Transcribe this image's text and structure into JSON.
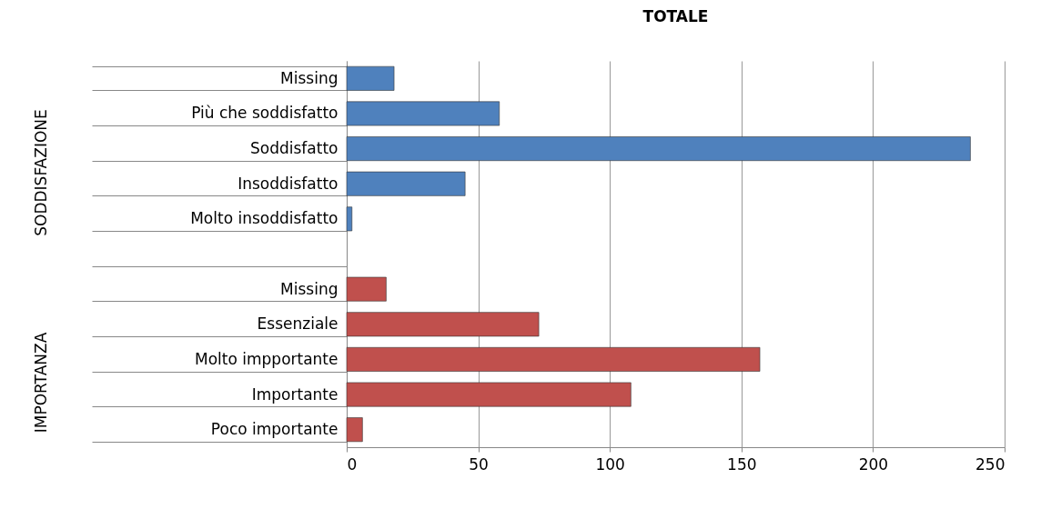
{
  "chart_data": {
    "type": "bar",
    "orientation": "horizontal",
    "title": "TOTALE",
    "categories": [
      "Missing",
      "Più che soddisfatto",
      "Soddisfatto",
      "Insoddisfatto",
      "Molto insoddisfatto",
      null,
      "Missing",
      "Essenziale",
      "Molto impportante",
      "Importante",
      "Poco importante"
    ],
    "series": [
      {
        "color": "#4f81bd",
        "values": [
          18,
          58,
          237,
          45,
          2,
          null,
          null,
          null,
          null,
          null,
          null
        ]
      },
      {
        "color": "#c0504d",
        "values": [
          null,
          null,
          null,
          null,
          null,
          null,
          15,
          73,
          157,
          108,
          6
        ]
      }
    ],
    "xlim": [
      0,
      250
    ],
    "xticks": [
      0,
      50,
      100,
      150,
      200,
      250
    ],
    "grid": "x",
    "legend": false,
    "annotations": [
      "SODDISFAZIONE",
      "IMPORTANZA"
    ]
  }
}
